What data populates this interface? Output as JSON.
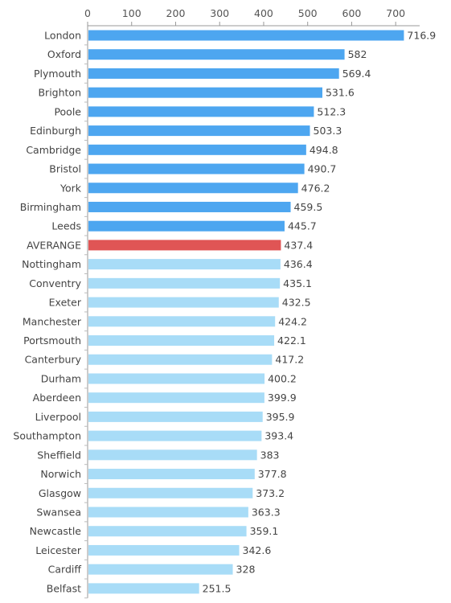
{
  "chart_data": {
    "type": "bar",
    "orientation": "horizontal",
    "title": "",
    "xlabel": "",
    "ylabel": "",
    "xlim": [
      0,
      750
    ],
    "x_ticks": [
      0,
      100,
      200,
      300,
      400,
      500,
      600,
      700
    ],
    "x_axis_position": "top",
    "grid": false,
    "legend": "none",
    "categories": [
      "London",
      "Oxford",
      "Plymouth",
      "Brighton",
      "Poole",
      "Edinburgh",
      "Cambridge",
      "Bristol",
      "York",
      "Birmingham",
      "Leeds",
      "AVERANGE",
      "Nottingham",
      "Conventry",
      "Exeter",
      "Manchester",
      "Portsmouth",
      "Canterbury",
      "Durham",
      "Aberdeen",
      "Liverpool",
      "Southampton",
      "Sheffield",
      "Norwich",
      "Glasgow",
      "Swansea",
      "Newcastle",
      "Leicester",
      "Cardiff",
      "Belfast"
    ],
    "values": [
      716.9,
      582,
      569.4,
      531.6,
      512.3,
      503.3,
      494.8,
      490.7,
      476.2,
      459.5,
      445.7,
      437.4,
      436.4,
      435.1,
      432.5,
      424.2,
      422.1,
      417.2,
      400.2,
      399.9,
      395.9,
      393.4,
      383,
      377.8,
      373.2,
      363.3,
      359.1,
      342.6,
      328,
      251.5
    ],
    "value_labels": [
      "716.9",
      "582",
      "569.4",
      "531.6",
      "512.3",
      "503.3",
      "494.8",
      "490.7",
      "476.2",
      "459.5",
      "445.7",
      "437.4",
      "436.4",
      "435.1",
      "432.5",
      "424.2",
      "422.1",
      "417.2",
      "400.2",
      "399.9",
      "395.9",
      "393.4",
      "383",
      "377.8",
      "373.2",
      "363.3",
      "359.1",
      "342.6",
      "328",
      "251.5"
    ],
    "colors": {
      "above_average": "#4da6f0",
      "average": "#e05555",
      "below_average": "#a8dcf7"
    }
  }
}
